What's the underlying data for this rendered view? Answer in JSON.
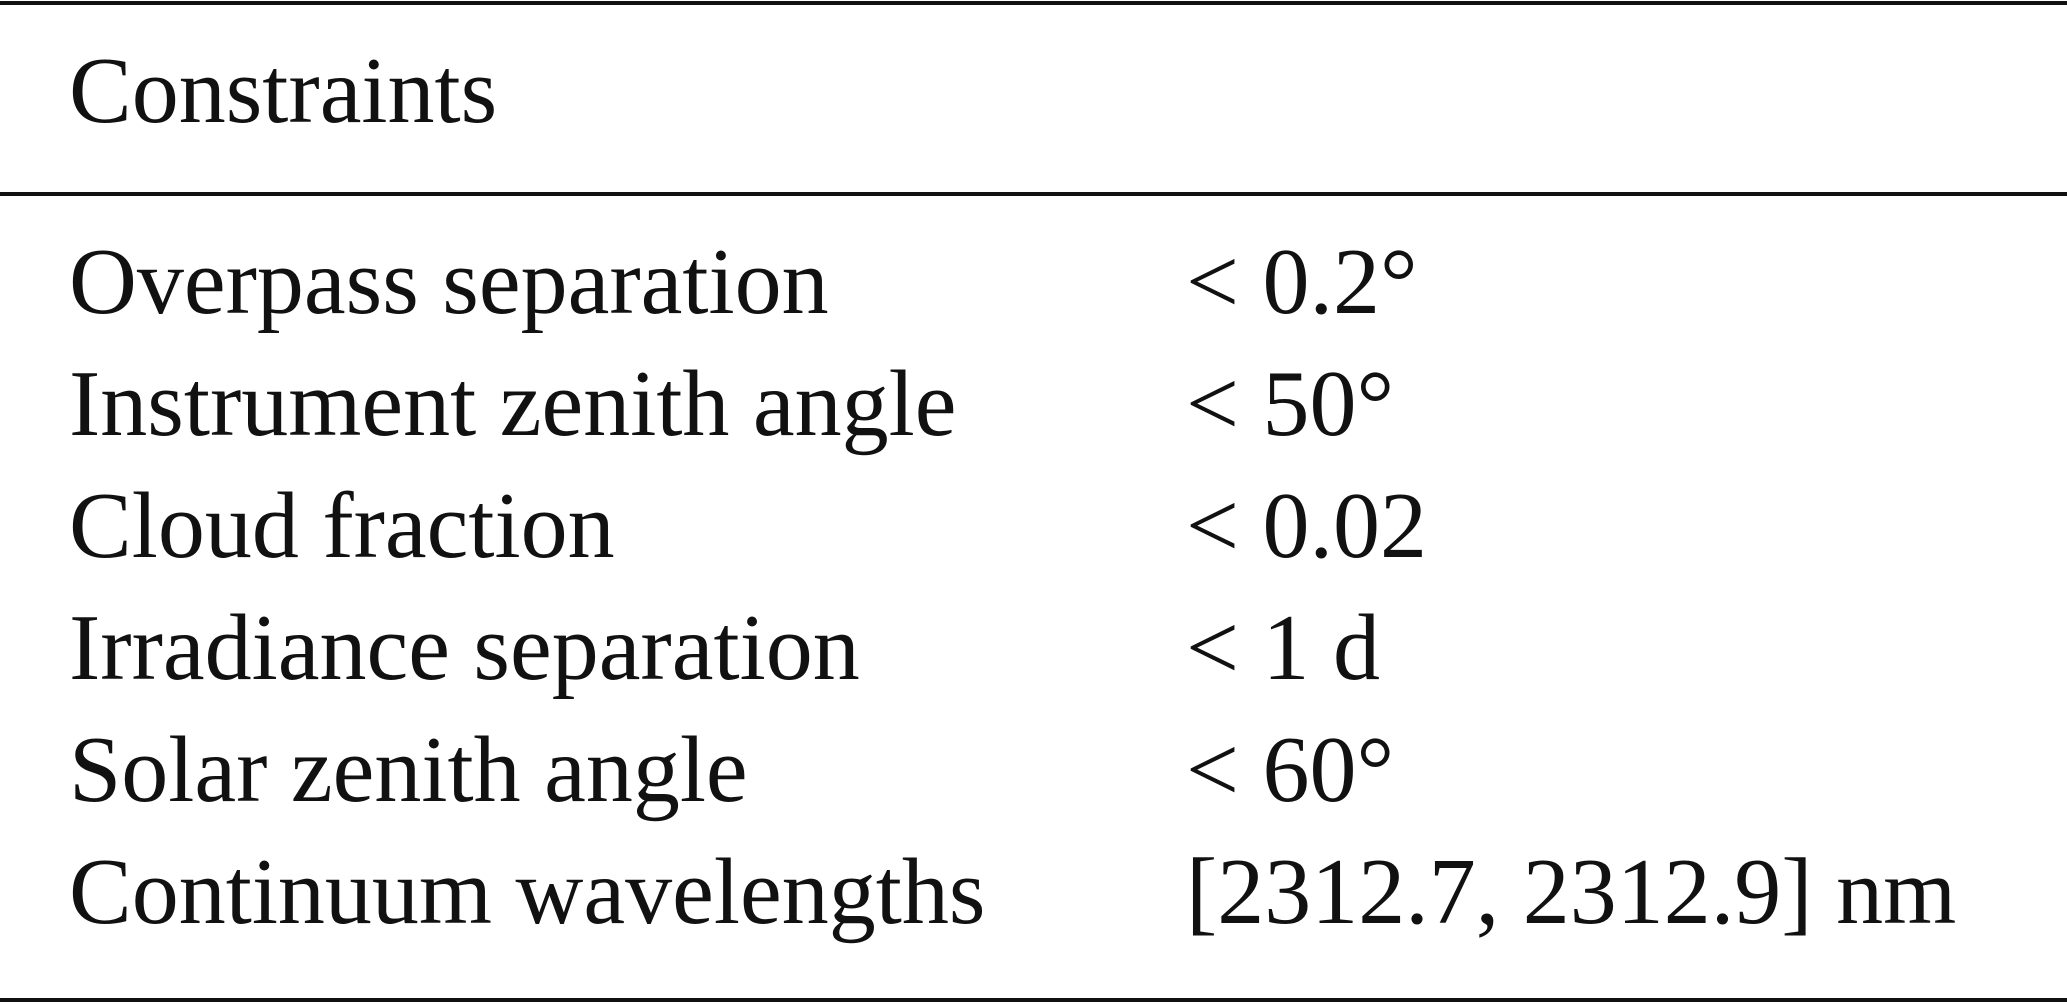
{
  "table": {
    "header": [
      "Constraints"
    ],
    "rows": [
      [
        "Overpass separation",
        "< 0.2°"
      ],
      [
        "Instrument zenith angle",
        "< 50°"
      ],
      [
        "Cloud fraction",
        "< 0.02"
      ],
      [
        "Irradiance separation",
        "< 1 d"
      ],
      [
        "Solar zenith angle",
        "< 60°"
      ],
      [
        "Continuum wavelengths",
        "[2312.7, 2312.9] nm"
      ]
    ]
  }
}
